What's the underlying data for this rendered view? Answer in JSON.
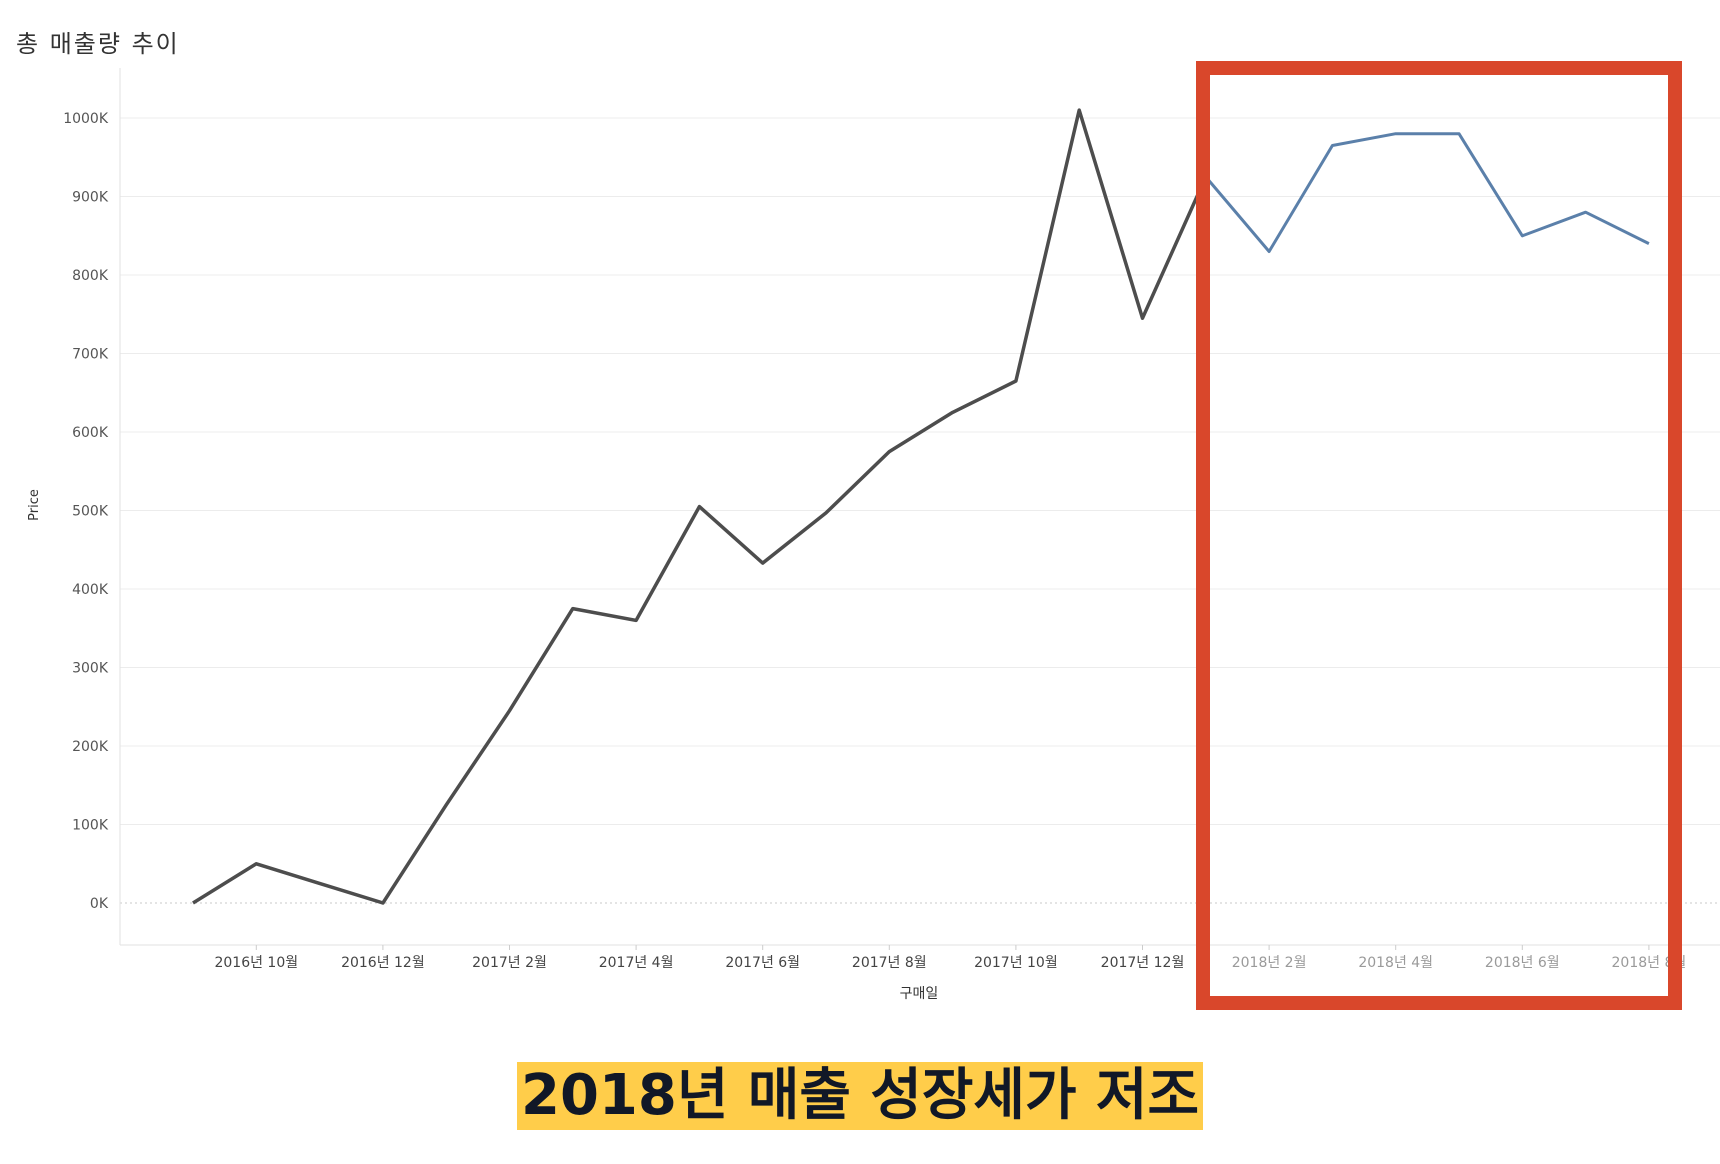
{
  "chart_title": "총 매출량 추이",
  "caption": "2018년 매출 성장세가 저조",
  "colors": {
    "line_main": "#4d4d4d",
    "line_highlight": "#5b80aa",
    "highlight_box": "#d9472b",
    "caption_bg": "#ffcd4a",
    "caption_text": "#111827",
    "grid": "#ececec",
    "tick_text": "#555555"
  },
  "chart_data": {
    "type": "line",
    "title": "총 매출량 추이",
    "xlabel": "구매일",
    "ylabel": "Price",
    "ylim": [
      -50000,
      1050000
    ],
    "yticks": [
      0,
      100000,
      200000,
      300000,
      400000,
      500000,
      600000,
      700000,
      800000,
      900000,
      1000000
    ],
    "ytick_labels": [
      "0K",
      "100K",
      "200K",
      "300K",
      "400K",
      "500K",
      "600K",
      "700K",
      "800K",
      "900K",
      "1000K"
    ],
    "x": [
      "2016-09",
      "2016-10",
      "2016-11",
      "2016-12",
      "2017-01",
      "2017-02",
      "2017-03",
      "2017-04",
      "2017-05",
      "2017-06",
      "2017-07",
      "2017-08",
      "2017-09",
      "2017-10",
      "2017-11",
      "2017-12",
      "2018-01",
      "2018-02",
      "2018-03",
      "2018-04",
      "2018-05",
      "2018-06",
      "2018-07",
      "2018-08"
    ],
    "xtick_labels": [
      {
        "x": "2016-10",
        "label": "2016년 10월"
      },
      {
        "x": "2016-12",
        "label": "2016년 12월"
      },
      {
        "x": "2017-02",
        "label": "2017년 2월"
      },
      {
        "x": "2017-04",
        "label": "2017년 4월"
      },
      {
        "x": "2017-06",
        "label": "2017년 6월"
      },
      {
        "x": "2017-08",
        "label": "2017년 8월"
      },
      {
        "x": "2017-10",
        "label": "2017년 10월"
      },
      {
        "x": "2017-12",
        "label": "2017년 12월"
      },
      {
        "x": "2018-02",
        "label": "2018년 2월"
      },
      {
        "x": "2018-04",
        "label": "2018년 4월"
      },
      {
        "x": "2018-06",
        "label": "2018년 6월"
      },
      {
        "x": "2018-08",
        "label": "2018년 8월"
      }
    ],
    "series": [
      {
        "values": [
          0,
          50000,
          25000,
          0,
          125000,
          245000,
          375000,
          360000,
          505000,
          433000,
          497000,
          575000,
          625000,
          665000,
          1010000,
          745000,
          925000,
          830000,
          965000,
          980000,
          980000,
          850000,
          880000,
          840000
        ]
      }
    ],
    "highlight": {
      "from": "2018-01",
      "to": "2018-08"
    },
    "grid": true,
    "zero_line": "dotted"
  }
}
